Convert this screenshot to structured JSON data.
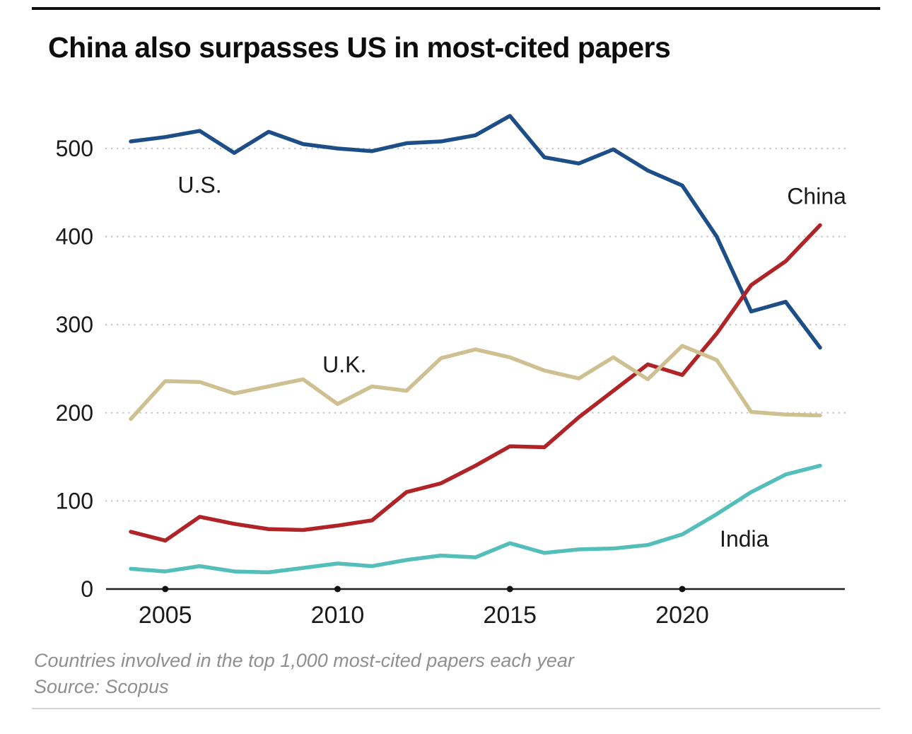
{
  "chart_data": {
    "type": "line",
    "title": "China also surpasses US in most-cited papers",
    "note": "Countries involved in the top 1,000 most-cited papers each year",
    "source": "Source: Scopus",
    "xlabel": "",
    "ylabel": "",
    "x": [
      2004,
      2005,
      2006,
      2007,
      2008,
      2009,
      2010,
      2011,
      2012,
      2013,
      2014,
      2015,
      2016,
      2017,
      2018,
      2019,
      2020,
      2021,
      2022,
      2023,
      2024
    ],
    "x_range": [
      2004,
      2024
    ],
    "ylim": [
      0,
      500
    ],
    "xticks": [
      2005,
      2010,
      2015,
      2020
    ],
    "yticks": [
      0,
      100,
      200,
      300,
      400,
      500
    ],
    "grid": "horizontal-dotted",
    "legend": "inline-labels",
    "axis_color": "#1a1a1a",
    "gridline_color": "#c4c4c4",
    "series": [
      {
        "id": "us",
        "label": "U.S.",
        "color": "#1d4e88",
        "label_at": [
          2006,
          450
        ],
        "values": [
          508,
          513,
          520,
          495,
          519,
          505,
          500,
          497,
          506,
          508,
          515,
          537,
          490,
          483,
          499,
          475,
          458,
          400,
          315,
          326,
          274
        ]
      },
      {
        "id": "china",
        "label": "China",
        "color": "#b02428",
        "label_at": [
          2023.9,
          437
        ],
        "values": [
          65,
          55,
          82,
          74,
          68,
          67,
          72,
          78,
          110,
          120,
          140,
          162,
          161,
          195,
          225,
          255,
          243,
          290,
          345,
          372,
          413
        ]
      },
      {
        "id": "uk",
        "label": "U.K.",
        "color": "#cfc091",
        "label_at": [
          2010.2,
          246
        ],
        "values": [
          193,
          236,
          235,
          222,
          230,
          238,
          210,
          230,
          225,
          262,
          272,
          263,
          248,
          239,
          263,
          238,
          276,
          260,
          201,
          198,
          197
        ]
      },
      {
        "id": "india",
        "label": "India",
        "color": "#54bfba",
        "label_at": [
          2021.8,
          48
        ],
        "values": [
          23,
          20,
          26,
          20,
          19,
          24,
          29,
          26,
          33,
          38,
          36,
          52,
          41,
          45,
          46,
          50,
          62,
          85,
          110,
          130,
          140
        ]
      }
    ]
  }
}
